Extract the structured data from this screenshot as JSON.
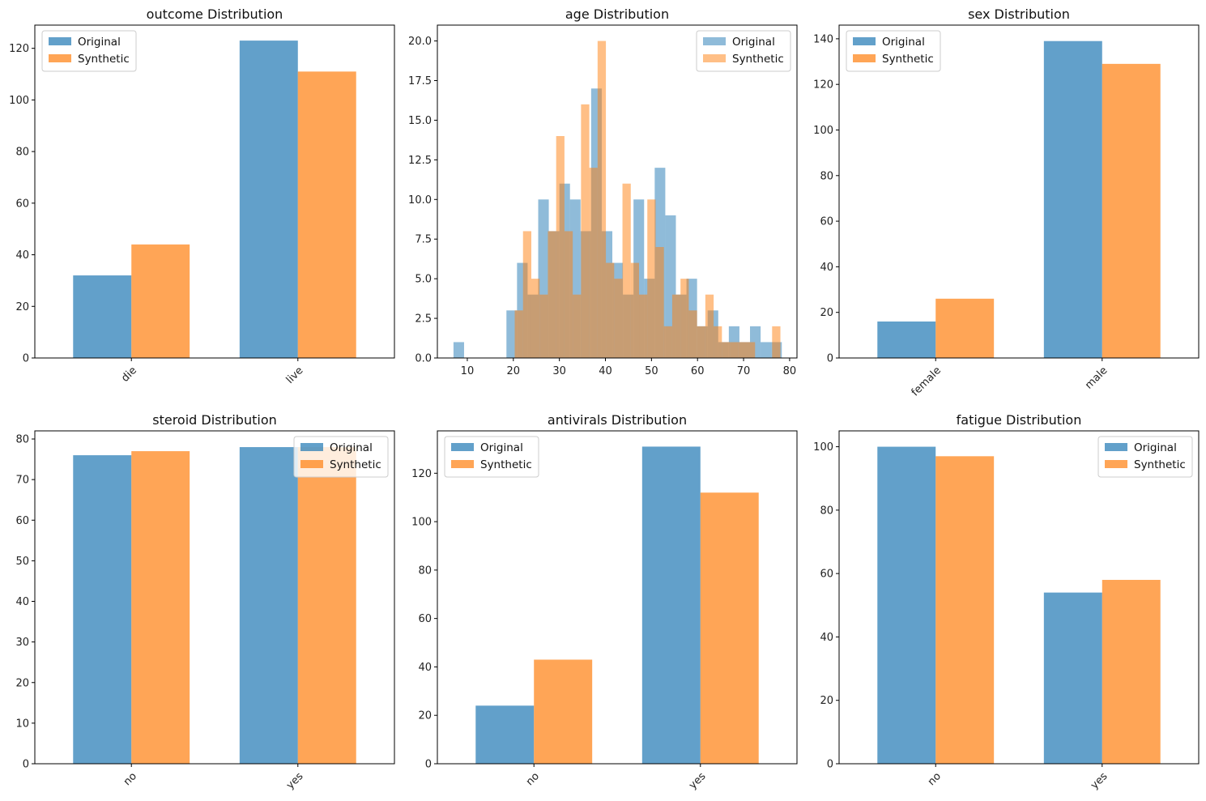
{
  "colors": {
    "original": "#1f77b4",
    "synthetic": "#ff7f0e"
  },
  "chart_data": [
    {
      "type": "bar",
      "title": "outcome Distribution",
      "categories": [
        "die",
        "live"
      ],
      "series": [
        {
          "name": "Original",
          "values": [
            32,
            123
          ]
        },
        {
          "name": "Synthetic",
          "values": [
            44,
            111
          ]
        }
      ],
      "ylim": [
        0,
        129
      ],
      "yticks": [
        0,
        20,
        40,
        60,
        80,
        100,
        120
      ],
      "ytick_labels": [
        "0",
        "20",
        "40",
        "60",
        "80",
        "100",
        "120"
      ],
      "legend": "top-left",
      "grid": false
    },
    {
      "type": "histogram",
      "title": "age Distribution",
      "bins": [
        {
          "x0": 7,
          "x1": 9.3,
          "v": 1
        },
        {
          "x0": 18.5,
          "x1": 20.8,
          "v": 3
        },
        {
          "x0": 20.8,
          "x1": 23.1,
          "v": 6
        },
        {
          "x0": 23.1,
          "x1": 25.4,
          "v": 4
        },
        {
          "x0": 25.4,
          "x1": 27.7,
          "v": 10
        },
        {
          "x0": 27.7,
          "x1": 30.0,
          "v": 8
        },
        {
          "x0": 30.0,
          "x1": 32.3,
          "v": 11
        },
        {
          "x0": 32.3,
          "x1": 34.6,
          "v": 10
        },
        {
          "x0": 34.6,
          "x1": 36.9,
          "v": 8
        },
        {
          "x0": 36.9,
          "x1": 39.2,
          "v": 17
        },
        {
          "x0": 39.2,
          "x1": 41.5,
          "v": 8
        },
        {
          "x0": 41.5,
          "x1": 43.8,
          "v": 6
        },
        {
          "x0": 43.8,
          "x1": 46.1,
          "v": 4
        },
        {
          "x0": 46.1,
          "x1": 48.4,
          "v": 10
        },
        {
          "x0": 48.4,
          "x1": 50.7,
          "v": 5
        },
        {
          "x0": 50.7,
          "x1": 53.0,
          "v": 12
        },
        {
          "x0": 53.0,
          "x1": 55.3,
          "v": 9
        },
        {
          "x0": 55.3,
          "x1": 57.6,
          "v": 4
        },
        {
          "x0": 57.6,
          "x1": 59.9,
          "v": 5
        },
        {
          "x0": 59.9,
          "x1": 62.2,
          "v": 2
        },
        {
          "x0": 62.2,
          "x1": 64.5,
          "v": 3
        },
        {
          "x0": 64.5,
          "x1": 66.8,
          "v": 1
        },
        {
          "x0": 66.8,
          "x1": 69.1,
          "v": 2
        },
        {
          "x0": 69.1,
          "x1": 71.4,
          "v": 1
        },
        {
          "x0": 71.4,
          "x1": 73.7,
          "v": 2
        },
        {
          "x0": 73.7,
          "x1": 76.0,
          "v": 1
        },
        {
          "x0": 76.0,
          "x1": 78.3,
          "v": 1
        }
      ],
      "bins2": [
        {
          "x0": 20.3,
          "x1": 22.1,
          "v": 3
        },
        {
          "x0": 22.1,
          "x1": 23.9,
          "v": 8
        },
        {
          "x0": 23.9,
          "x1": 25.7,
          "v": 5
        },
        {
          "x0": 25.7,
          "x1": 27.5,
          "v": 4
        },
        {
          "x0": 27.5,
          "x1": 29.3,
          "v": 8
        },
        {
          "x0": 29.3,
          "x1": 31.1,
          "v": 14
        },
        {
          "x0": 31.1,
          "x1": 32.9,
          "v": 8
        },
        {
          "x0": 32.9,
          "x1": 34.7,
          "v": 4
        },
        {
          "x0": 34.7,
          "x1": 36.5,
          "v": 16
        },
        {
          "x0": 36.5,
          "x1": 38.3,
          "v": 12
        },
        {
          "x0": 38.3,
          "x1": 40.1,
          "v": 20
        },
        {
          "x0": 40.1,
          "x1": 41.9,
          "v": 6
        },
        {
          "x0": 41.9,
          "x1": 43.7,
          "v": 5
        },
        {
          "x0": 43.7,
          "x1": 45.5,
          "v": 11
        },
        {
          "x0": 45.5,
          "x1": 47.3,
          "v": 6
        },
        {
          "x0": 47.3,
          "x1": 49.1,
          "v": 4
        },
        {
          "x0": 49.1,
          "x1": 50.9,
          "v": 10
        },
        {
          "x0": 50.9,
          "x1": 52.7,
          "v": 7
        },
        {
          "x0": 52.7,
          "x1": 54.5,
          "v": 2
        },
        {
          "x0": 54.5,
          "x1": 56.3,
          "v": 4
        },
        {
          "x0": 56.3,
          "x1": 58.1,
          "v": 5
        },
        {
          "x0": 58.1,
          "x1": 59.9,
          "v": 3
        },
        {
          "x0": 59.9,
          "x1": 61.7,
          "v": 2
        },
        {
          "x0": 61.7,
          "x1": 63.5,
          "v": 4
        },
        {
          "x0": 63.5,
          "x1": 65.3,
          "v": 2
        },
        {
          "x0": 65.3,
          "x1": 67.1,
          "v": 1
        },
        {
          "x0": 67.1,
          "x1": 68.9,
          "v": 1
        },
        {
          "x0": 68.9,
          "x1": 70.7,
          "v": 1
        },
        {
          "x0": 70.7,
          "x1": 72.5,
          "v": 1
        },
        {
          "x0": 76.2,
          "x1": 78.0,
          "v": 2
        }
      ],
      "series": [
        {
          "name": "Original"
        },
        {
          "name": "Synthetic"
        }
      ],
      "xlim": [
        3.5,
        81.6
      ],
      "ylim": [
        0,
        21
      ],
      "xticks": [
        10,
        20,
        30,
        40,
        50,
        60,
        70,
        80
      ],
      "xtick_labels": [
        "10",
        "20",
        "30",
        "40",
        "50",
        "60",
        "70",
        "80"
      ],
      "yticks": [
        0,
        2.5,
        5,
        7.5,
        10,
        12.5,
        15,
        17.5,
        20
      ],
      "ytick_labels": [
        "0.0",
        "2.5",
        "5.0",
        "7.5",
        "10.0",
        "12.5",
        "15.0",
        "17.5",
        "20.0"
      ],
      "legend": "top-right",
      "grid": false
    },
    {
      "type": "bar",
      "title": "sex Distribution",
      "categories": [
        "female",
        "male"
      ],
      "series": [
        {
          "name": "Original",
          "values": [
            16,
            139
          ]
        },
        {
          "name": "Synthetic",
          "values": [
            26,
            129
          ]
        }
      ],
      "ylim": [
        0,
        146
      ],
      "yticks": [
        0,
        20,
        40,
        60,
        80,
        100,
        120,
        140
      ],
      "ytick_labels": [
        "0",
        "20",
        "40",
        "60",
        "80",
        "100",
        "120",
        "140"
      ],
      "legend": "top-left",
      "grid": false
    },
    {
      "type": "bar",
      "title": "steroid Distribution",
      "categories": [
        "no",
        "yes"
      ],
      "series": [
        {
          "name": "Original",
          "values": [
            76,
            78
          ]
        },
        {
          "name": "Synthetic",
          "values": [
            77,
            78
          ]
        }
      ],
      "ylim": [
        0,
        82
      ],
      "yticks": [
        0,
        10,
        20,
        30,
        40,
        50,
        60,
        70,
        80
      ],
      "ytick_labels": [
        "0",
        "10",
        "20",
        "30",
        "40",
        "50",
        "60",
        "70",
        "80"
      ],
      "legend": "top-right",
      "grid": false
    },
    {
      "type": "bar",
      "title": "antivirals Distribution",
      "categories": [
        "no",
        "yes"
      ],
      "series": [
        {
          "name": "Original",
          "values": [
            24,
            131
          ]
        },
        {
          "name": "Synthetic",
          "values": [
            43,
            112
          ]
        }
      ],
      "ylim": [
        0,
        137.5
      ],
      "yticks": [
        0,
        20,
        40,
        60,
        80,
        100,
        120
      ],
      "ytick_labels": [
        "0",
        "20",
        "40",
        "60",
        "80",
        "100",
        "120"
      ],
      "legend": "top-left",
      "grid": false
    },
    {
      "type": "bar",
      "title": "fatigue Distribution",
      "categories": [
        "no",
        "yes"
      ],
      "series": [
        {
          "name": "Original",
          "values": [
            100,
            54
          ]
        },
        {
          "name": "Synthetic",
          "values": [
            97,
            58
          ]
        }
      ],
      "ylim": [
        0,
        105
      ],
      "yticks": [
        0,
        20,
        40,
        60,
        80,
        100
      ],
      "ytick_labels": [
        "0",
        "20",
        "40",
        "60",
        "80",
        "100"
      ],
      "legend": "top-right",
      "grid": false
    }
  ]
}
